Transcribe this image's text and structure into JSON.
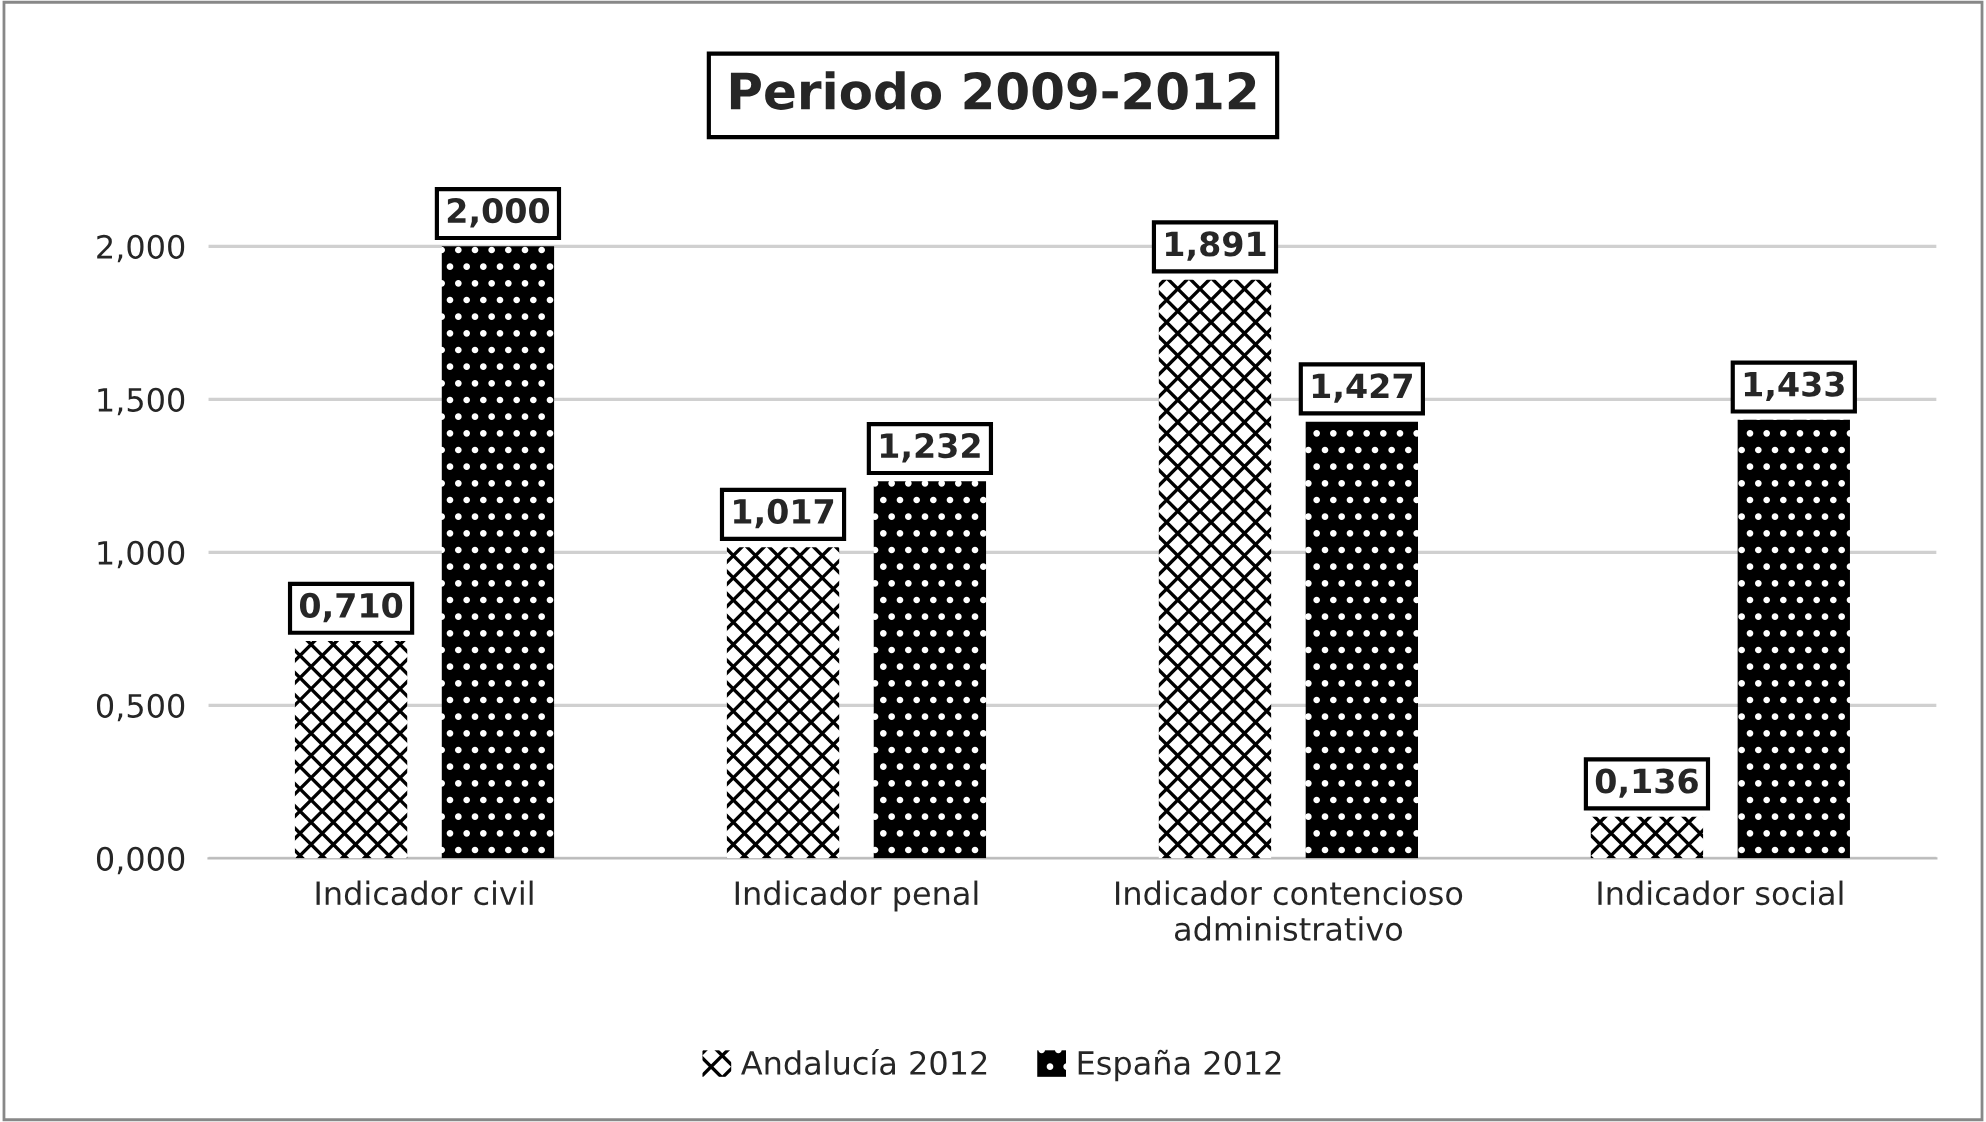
{
  "chart_data": {
    "type": "bar",
    "title": "Periodo 2009-2012",
    "categories": [
      "Indicador civil",
      "Indicador penal",
      "Indicador contencioso\nadministrativo",
      "Indicador social"
    ],
    "series": [
      {
        "name": "Andalucía 2012",
        "color": "#ffffff",
        "values": [
          0.71,
          1.017,
          1.891,
          0.136
        ],
        "value_labels": [
          "0,710",
          "1,017",
          "1,891",
          "0,136"
        ]
      },
      {
        "name": "España 2012",
        "color": "#000000",
        "values": [
          2.0,
          1.232,
          1.427,
          1.433
        ],
        "value_labels": [
          "2,000",
          "1,232",
          "1,427",
          "1,433"
        ]
      }
    ],
    "ylim": [
      0,
      2.2
    ],
    "yticks": [
      {
        "value": 0,
        "label": "0,000"
      },
      {
        "value": 0.5,
        "label": "0,500"
      },
      {
        "value": 1.0,
        "label": "1,000"
      },
      {
        "value": 1.5,
        "label": "1,500"
      },
      {
        "value": 2.0,
        "label": "2,000"
      }
    ],
    "grid": "y",
    "legend": "bottom"
  }
}
